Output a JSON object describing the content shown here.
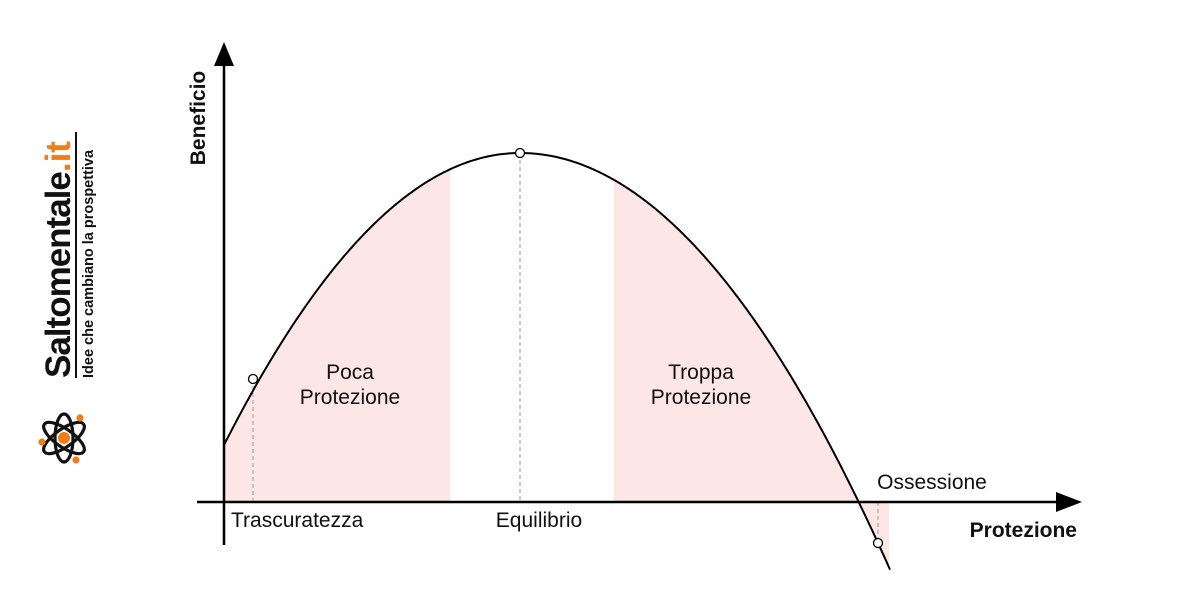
{
  "axes": {
    "x_label": "Protezione",
    "y_label": "Beneficio"
  },
  "regions": {
    "low_line1": "Poca",
    "low_line2": "Protezione",
    "high_line1": "Troppa",
    "high_line2": "Protezione"
  },
  "points": {
    "neglect": "Trascuratezza",
    "balance": "Equilibrio",
    "obsession": "Ossessione"
  },
  "brand": {
    "name": "Saltomentale",
    "tld": ".it",
    "tagline": "Idee che cambiano la prospettiva",
    "logo_icon": "atom-icon"
  },
  "colors": {
    "region_fill": "#fde6e6",
    "curve": "#000000",
    "accent": "#f07c1a"
  }
}
